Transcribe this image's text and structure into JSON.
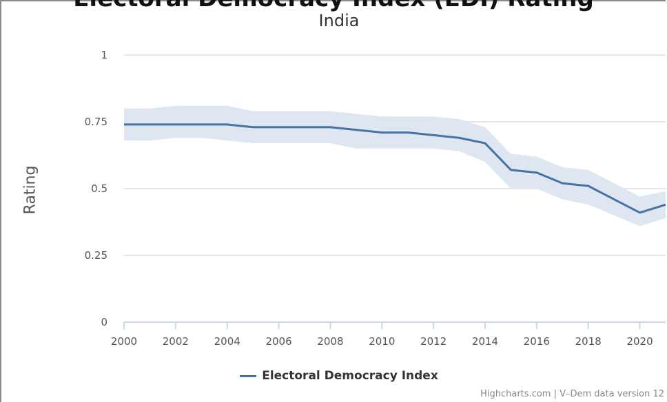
{
  "header": {
    "title_cut": "Electoral Democracy Index (EDI) Rating",
    "subtitle": "India"
  },
  "footer": {
    "credits": "Highcharts.com | V–Dem data version 12"
  },
  "colors": {
    "line": "#4572a7",
    "band": "#dde6f1",
    "grid": "#e6e6e6",
    "axis": "#ccd6eb"
  },
  "chart_data": {
    "type": "line",
    "title": "India",
    "ylabel": "Rating",
    "xlabel": "",
    "ylim": [
      0,
      1
    ],
    "xlim": [
      2000,
      2021
    ],
    "y_ticks": [
      "0",
      "0.25",
      "0.5",
      "0.75",
      "1"
    ],
    "x_ticks": [
      "2000",
      "2002",
      "2004",
      "2006",
      "2008",
      "2010",
      "2012",
      "2014",
      "2016",
      "2018",
      "2020"
    ],
    "grid": true,
    "legend_position": "bottom-center",
    "x": [
      2000,
      2001,
      2002,
      2003,
      2004,
      2005,
      2006,
      2007,
      2008,
      2009,
      2010,
      2011,
      2012,
      2013,
      2014,
      2015,
      2016,
      2017,
      2018,
      2019,
      2020,
      2021
    ],
    "series": [
      {
        "name": "Electoral Democracy Index",
        "values": [
          0.74,
          0.74,
          0.74,
          0.74,
          0.74,
          0.73,
          0.73,
          0.73,
          0.73,
          0.72,
          0.71,
          0.71,
          0.7,
          0.69,
          0.67,
          0.57,
          0.56,
          0.52,
          0.51,
          0.46,
          0.41,
          0.44
        ],
        "upper": [
          0.8,
          0.8,
          0.81,
          0.81,
          0.81,
          0.79,
          0.79,
          0.79,
          0.79,
          0.78,
          0.77,
          0.77,
          0.77,
          0.76,
          0.73,
          0.63,
          0.62,
          0.58,
          0.57,
          0.52,
          0.47,
          0.49
        ],
        "lower": [
          0.68,
          0.68,
          0.69,
          0.69,
          0.68,
          0.67,
          0.67,
          0.67,
          0.67,
          0.65,
          0.65,
          0.65,
          0.65,
          0.64,
          0.6,
          0.5,
          0.5,
          0.46,
          0.44,
          0.4,
          0.36,
          0.39
        ]
      }
    ]
  }
}
